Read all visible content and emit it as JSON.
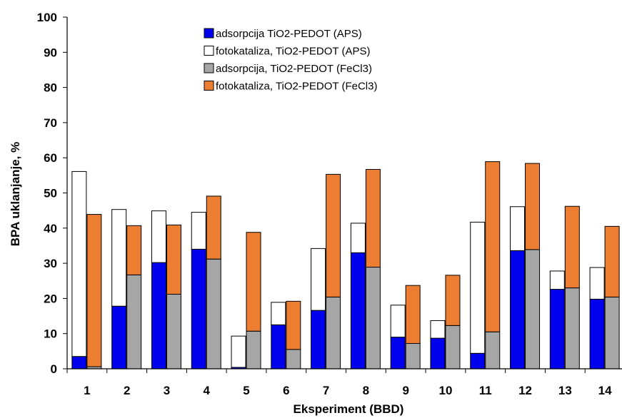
{
  "chart_data": {
    "type": "bar",
    "stacked": true,
    "title": "",
    "xlabel": "Eksperiment (BBD)",
    "ylabel": "BPA uklanjanje, %",
    "ylim": [
      0,
      100
    ],
    "yticks": [
      0,
      10,
      20,
      30,
      40,
      50,
      60,
      70,
      80,
      90,
      100
    ],
    "grid": false,
    "legend_position": "top-center",
    "categories": [
      "1",
      "2",
      "3",
      "4",
      "5",
      "6",
      "7",
      "8",
      "9",
      "10",
      "11",
      "12",
      "13",
      "14"
    ],
    "groups": [
      {
        "name": "TiO2-PEDOT (APS)",
        "series": [
          {
            "name": "adsorpcija TiO2-PEDOT (APS)",
            "color": "#0000ee",
            "values": [
              3.5,
              17.8,
              30.2,
              34.0,
              0.4,
              12.5,
              16.6,
              33.0,
              9.0,
              8.7,
              4.4,
              33.6,
              22.6,
              19.8
            ]
          },
          {
            "name": "fotokataliza, TiO2-PEDOT (APS)",
            "color": "#ffffff",
            "values": [
              52.6,
              27.5,
              14.7,
              10.5,
              8.9,
              6.4,
              17.6,
              8.4,
              9.1,
              5.0,
              37.3,
              12.5,
              5.2,
              9.0
            ]
          }
        ]
      },
      {
        "name": "TiO2-PEDOT (FeCl3)",
        "series": [
          {
            "name": "adsorpcija, TiO2-PEDOT (FeCl3)",
            "color": "#a6a6a6",
            "values": [
              0.6,
              26.7,
              21.2,
              31.2,
              10.7,
              5.5,
              20.4,
              28.9,
              7.2,
              12.3,
              10.5,
              33.9,
              23.0,
              20.4
            ]
          },
          {
            "name": "fotokataliza, TiO2-PEDOT (FeCl3)",
            "color": "#ed7d31",
            "values": [
              43.3,
              14.0,
              19.7,
              17.9,
              28.1,
              13.7,
              34.9,
              27.8,
              16.5,
              14.3,
              48.4,
              24.5,
              23.2,
              20.1
            ]
          }
        ]
      }
    ],
    "legend": [
      {
        "label": "adsorpcija TiO2-PEDOT (APS)",
        "color": "#0000ee"
      },
      {
        "label": "fotokataliza, TiO2-PEDOT (APS)",
        "color": "#ffffff"
      },
      {
        "label": "adsorpcija, TiO2-PEDOT (FeCl3)",
        "color": "#a6a6a6"
      },
      {
        "label": "fotokataliza, TiO2-PEDOT (FeCl3)",
        "color": "#ed7d31"
      }
    ]
  }
}
